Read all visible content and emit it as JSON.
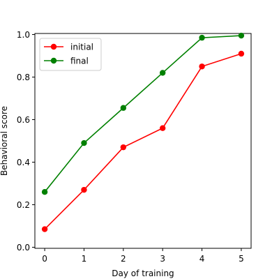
{
  "chart_data": {
    "type": "line",
    "xlabel": "Day of training",
    "ylabel": "Behavioral score",
    "x": [
      0,
      1,
      2,
      3,
      4,
      5
    ],
    "xlim": [
      -0.25,
      5.25
    ],
    "ylim": [
      -0.005,
      1.005
    ],
    "x_ticks": [
      0,
      1,
      2,
      3,
      4,
      5
    ],
    "y_ticks": [
      0.0,
      0.2,
      0.4,
      0.6,
      0.8,
      1.0
    ],
    "x_tick_labels": [
      "0",
      "1",
      "2",
      "3",
      "4",
      "5"
    ],
    "y_tick_labels": [
      "0.0",
      "0.2",
      "0.4",
      "0.6",
      "0.8",
      "1.0"
    ],
    "grid": false,
    "legend_position": "top-left",
    "series": [
      {
        "name": "initial",
        "color": "#ff0000",
        "values": [
          0.085,
          0.27,
          0.47,
          0.56,
          0.85,
          0.91
        ]
      },
      {
        "name": "final",
        "color": "#008000",
        "values": [
          0.26,
          0.49,
          0.655,
          0.82,
          0.985,
          0.995
        ]
      }
    ]
  }
}
